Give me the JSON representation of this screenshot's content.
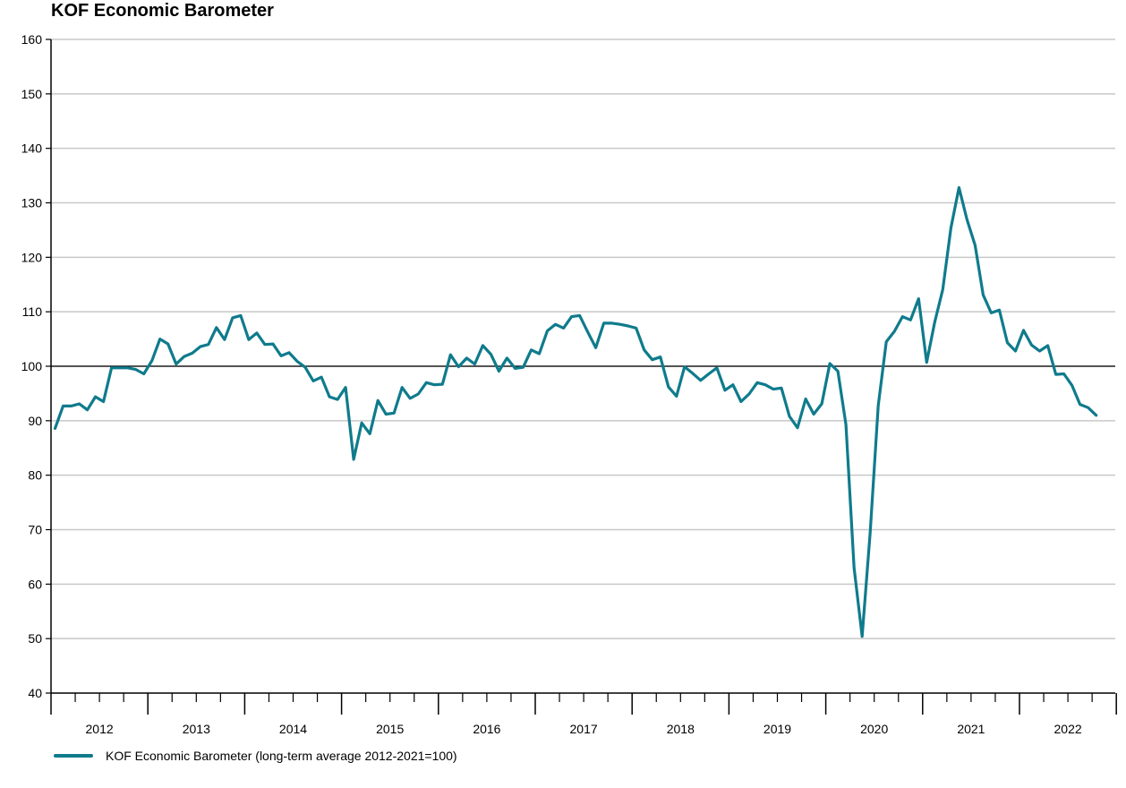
{
  "chart_data": {
    "type": "line",
    "title": "KOF Economic Barometer",
    "xlabel": "",
    "ylabel": "",
    "ylim": [
      40,
      160
    ],
    "yticks": [
      40,
      50,
      60,
      70,
      80,
      90,
      100,
      110,
      120,
      130,
      140,
      150,
      160
    ],
    "reference_line": 100,
    "x_start": "2012-01",
    "x_end": "2022-12",
    "year_labels": [
      "2012",
      "2013",
      "2014",
      "2015",
      "2016",
      "2017",
      "2018",
      "2019",
      "2020",
      "2021",
      "2022"
    ],
    "grid": true,
    "legend_position": "bottom-left",
    "series": [
      {
        "name": "KOF Economic Barometer (long-term average 2012-2021=100)",
        "color": "#0f7b8c",
        "start": "2012-01",
        "values": [
          88.6,
          92.7,
          92.7,
          93.1,
          92.0,
          94.4,
          93.5,
          99.7,
          99.7,
          99.7,
          99.4,
          98.6,
          101.0,
          105.0,
          104.1,
          100.4,
          101.8,
          102.4,
          103.6,
          104.0,
          107.1,
          104.9,
          108.9,
          109.3,
          104.9,
          106.1,
          104.0,
          104.1,
          101.9,
          102.5,
          100.9,
          99.8,
          97.3,
          98.0,
          94.4,
          93.9,
          96.1,
          82.9,
          89.6,
          87.6,
          93.7,
          91.2,
          91.4,
          96.1,
          94.1,
          94.9,
          97.0,
          96.6,
          96.7,
          102.1,
          99.9,
          101.5,
          100.4,
          103.8,
          102.2,
          99.1,
          101.5,
          99.6,
          99.8,
          103.0,
          102.3,
          106.5,
          107.7,
          107.0,
          109.1,
          109.3,
          106.3,
          103.4,
          107.9,
          107.9,
          107.7,
          107.4,
          107.0,
          103.0,
          101.2,
          101.7,
          96.2,
          94.5,
          99.9,
          98.7,
          97.4,
          98.6,
          99.7,
          95.6,
          96.6,
          93.5,
          94.9,
          97.0,
          96.6,
          95.8,
          96.0,
          90.8,
          88.7,
          94.0,
          91.2,
          93.1,
          100.5,
          99.1,
          89.3,
          63.0,
          50.4,
          69.5,
          92.8,
          104.5,
          106.4,
          109.1,
          108.5,
          112.4,
          100.7,
          108.1,
          114.1,
          125.4,
          132.8,
          126.9,
          122.2,
          113.1,
          109.8,
          110.3,
          104.3,
          102.8,
          106.6,
          103.9,
          102.8,
          103.8,
          98.5,
          98.6,
          96.5,
          93.0,
          92.4,
          91.0
        ]
      }
    ]
  }
}
